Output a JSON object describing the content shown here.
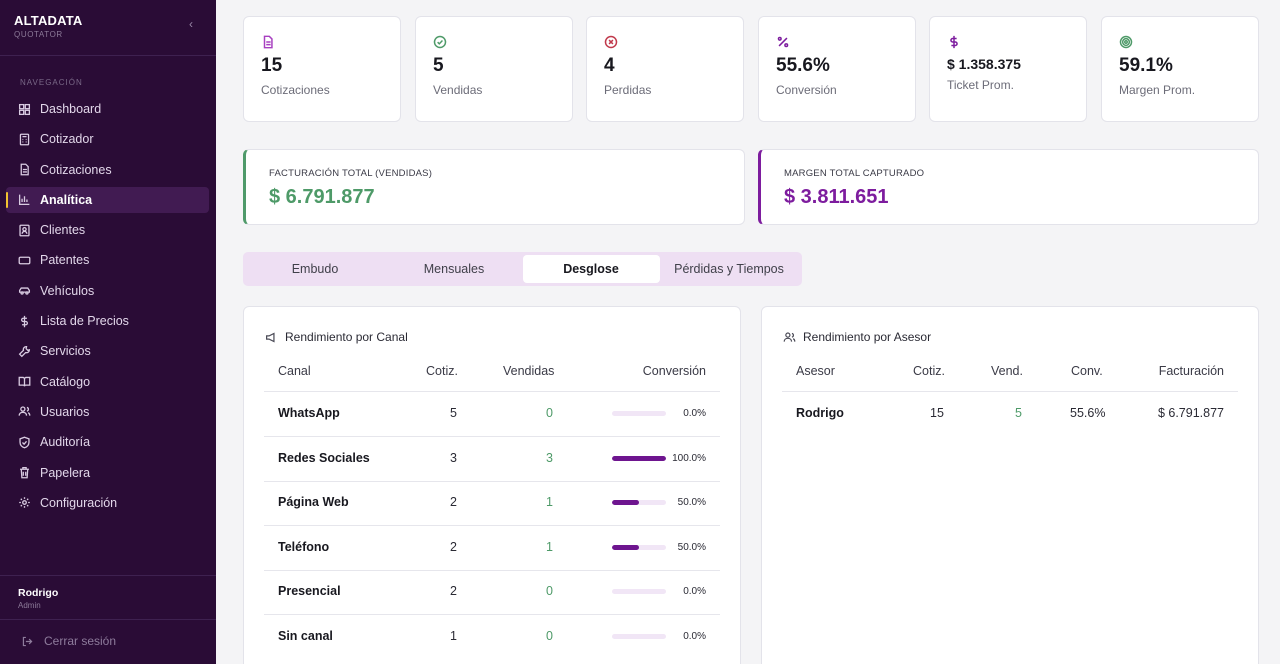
{
  "app": {
    "brand": "ALTADATA",
    "brand_sub": "QUOTATOR",
    "collapse_icon": "chevron-left-icon"
  },
  "sidebar": {
    "heading": "NAVEGACIÓN",
    "items": [
      {
        "label": "Dashboard",
        "icon": "grid-icon",
        "active": false
      },
      {
        "label": "Cotizador",
        "icon": "calculator-icon",
        "active": false
      },
      {
        "label": "Cotizaciones",
        "icon": "document-icon",
        "active": false
      },
      {
        "label": "Analítica",
        "icon": "bar-chart-icon",
        "active": true
      },
      {
        "label": "Clientes",
        "icon": "contact-icon",
        "active": false
      },
      {
        "label": "Patentes",
        "icon": "plate-icon",
        "active": false
      },
      {
        "label": "Vehículos",
        "icon": "car-icon",
        "active": false
      },
      {
        "label": "Lista de Precios",
        "icon": "dollar-icon",
        "active": false
      },
      {
        "label": "Servicios",
        "icon": "wrench-icon",
        "active": false
      },
      {
        "label": "Catálogo",
        "icon": "book-icon",
        "active": false
      },
      {
        "label": "Usuarios",
        "icon": "users-icon",
        "active": false
      },
      {
        "label": "Auditoría",
        "icon": "shield-icon",
        "active": false
      },
      {
        "label": "Papelera",
        "icon": "trash-icon",
        "active": false
      },
      {
        "label": "Configuración",
        "icon": "gear-icon",
        "active": false
      }
    ],
    "user": {
      "name": "Rodrigo",
      "role": "Admin"
    },
    "logout": "Cerrar sesión"
  },
  "stats": [
    {
      "icon": "document-icon",
      "color": "#a73fc0",
      "value": "15",
      "label": "Cotizaciones"
    },
    {
      "icon": "check-circle-icon",
      "color": "#4e9a68",
      "value": "5",
      "label": "Vendidas"
    },
    {
      "icon": "x-circle-icon",
      "color": "#c0394b",
      "value": "4",
      "label": "Perdidas"
    },
    {
      "icon": "percent-icon",
      "color": "#7d1c9e",
      "value": "55.6%",
      "label": "Conversión"
    },
    {
      "icon": "dollar-icon",
      "color": "#7d1c9e",
      "value": "$ 1.358.375",
      "label": "Ticket Prom."
    },
    {
      "icon": "target-icon",
      "color": "#4e9a68",
      "value": "59.1%",
      "label": "Margen Prom."
    }
  ],
  "totals": {
    "billing": {
      "label": "FACTURACIÓN TOTAL (VENDIDAS)",
      "value": "$ 6.791.877",
      "color": "#4e9a68"
    },
    "margin": {
      "label": "MARGEN TOTAL CAPTURADO",
      "value": "$ 3.811.651",
      "color": "#7d1c9e"
    }
  },
  "tabs": [
    {
      "label": "Embudo",
      "active": false
    },
    {
      "label": "Mensuales",
      "active": false
    },
    {
      "label": "Desglose",
      "active": true
    },
    {
      "label": "Pérdidas y Tiempos",
      "active": false
    }
  ],
  "channel_panel": {
    "title": "Rendimiento por Canal",
    "headers": [
      "Canal",
      "Cotiz.",
      "Vendidas",
      "Conversión"
    ],
    "rows": [
      {
        "channel": "WhatsApp",
        "quotes": "5",
        "sold": "0",
        "conversion": "0.0%",
        "conversion_value": 0
      },
      {
        "channel": "Redes Sociales",
        "quotes": "3",
        "sold": "3",
        "conversion": "100.0%",
        "conversion_value": 100
      },
      {
        "channel": "Página Web",
        "quotes": "2",
        "sold": "1",
        "conversion": "50.0%",
        "conversion_value": 50
      },
      {
        "channel": "Teléfono",
        "quotes": "2",
        "sold": "1",
        "conversion": "50.0%",
        "conversion_value": 50
      },
      {
        "channel": "Presencial",
        "quotes": "2",
        "sold": "0",
        "conversion": "0.0%",
        "conversion_value": 0
      },
      {
        "channel": "Sin canal",
        "quotes": "1",
        "sold": "0",
        "conversion": "0.0%",
        "conversion_value": 0
      }
    ]
  },
  "advisor_panel": {
    "title": "Rendimiento por Asesor",
    "headers": [
      "Asesor",
      "Cotiz.",
      "Vend.",
      "Conv.",
      "Facturación"
    ],
    "rows": [
      {
        "advisor": "Rodrigo",
        "quotes": "15",
        "sold": "5",
        "conversion": "55.6%",
        "billing": "$ 6.791.877"
      }
    ]
  }
}
